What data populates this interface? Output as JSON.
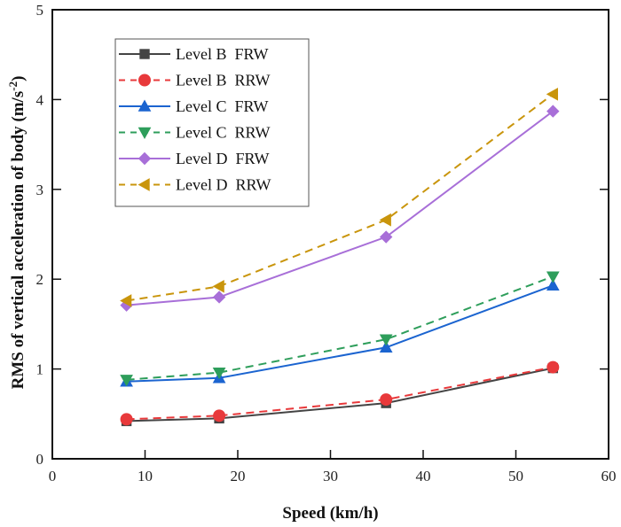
{
  "chart_data": {
    "type": "line",
    "title": "",
    "xlabel": "Speed (km/h)",
    "ylabel": "RMS of vertical acceleration of  body (m/s",
    "ylabel_sup": "-2",
    "ylabel_close": ")",
    "xlim": [
      0,
      60
    ],
    "ylim": [
      0,
      5
    ],
    "xticks": [
      0,
      10,
      20,
      30,
      40,
      50,
      60
    ],
    "yticks": [
      0,
      1,
      2,
      3,
      4,
      5
    ],
    "grid": false,
    "legend_position": "top-left",
    "x": [
      8,
      18,
      36,
      54
    ],
    "series": [
      {
        "name": "Level B  FRW",
        "values": [
          0.42,
          0.45,
          0.62,
          1.01
        ],
        "color": "#444444",
        "dash": "solid",
        "marker": "square"
      },
      {
        "name": "Level B  RRW",
        "values": [
          0.44,
          0.48,
          0.66,
          1.02
        ],
        "color": "#e8393b",
        "dash": "dashed",
        "marker": "circle"
      },
      {
        "name": "Level C  FRW",
        "values": [
          0.86,
          0.9,
          1.24,
          1.93
        ],
        "color": "#1b64d0",
        "dash": "solid",
        "marker": "triangle-up"
      },
      {
        "name": "Level C  RRW",
        "values": [
          0.88,
          0.96,
          1.33,
          2.03
        ],
        "color": "#2e9e5b",
        "dash": "dashed",
        "marker": "triangle-down"
      },
      {
        "name": "Level D  FRW",
        "values": [
          1.71,
          1.8,
          2.47,
          3.87
        ],
        "color": "#a86fd8",
        "dash": "solid",
        "marker": "diamond"
      },
      {
        "name": "Level D  RRW",
        "values": [
          1.76,
          1.92,
          2.66,
          4.06
        ],
        "color": "#c9950c",
        "dash": "dashed",
        "marker": "triangle-left"
      }
    ]
  }
}
